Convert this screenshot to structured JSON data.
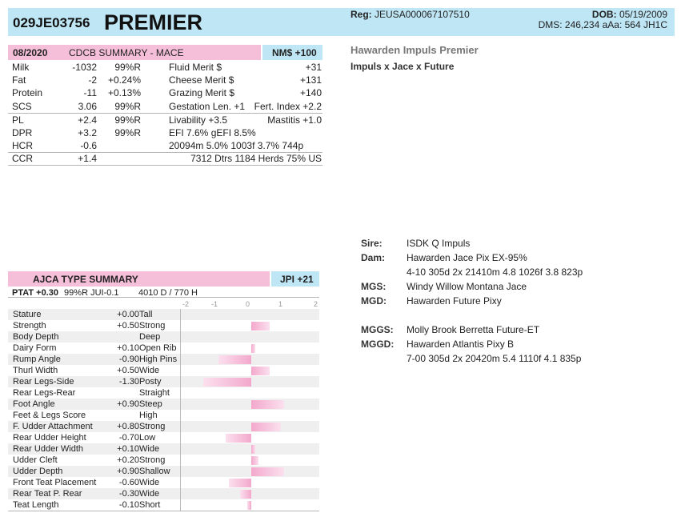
{
  "header": {
    "code": "029JE03756",
    "name": "PREMIER",
    "reg_label": "Reg:",
    "reg_value": "JEUSA000067107510",
    "dob_label": "DOB:",
    "dob_value": "05/19/2009",
    "dms_line": "DMS: 246,234  aAa: 564  JH1C"
  },
  "cdcb": {
    "date": "08/2020",
    "title": "CDCB SUMMARY - MACE",
    "nm": "NM$ +100",
    "rows": [
      {
        "trait": "Milk",
        "value": "-1032",
        "rel": "99%R",
        "label": "Fluid Merit $",
        "right": "+31"
      },
      {
        "trait": "Fat",
        "value": "-2",
        "rel": "+0.24%",
        "label": "Cheese Merit $",
        "right": "+131"
      },
      {
        "trait": "Protein",
        "value": "-11",
        "rel": "+0.13%",
        "label": "Grazing Merit $",
        "right": "+140"
      },
      {
        "trait": "SCS",
        "value": "3.06",
        "rel": "99%R",
        "label": "Gestation Len. +1",
        "right": "Fert. Index +2.2"
      },
      {
        "trait": "PL",
        "value": "+2.4",
        "rel": "99%R",
        "label": "Livability  +3.5",
        "right": "Mastitis  +1.0"
      },
      {
        "trait": "DPR",
        "value": "+3.2",
        "rel": "99%R",
        "label": " EFI  7.6%  gEFI  8.5%",
        "right": ""
      },
      {
        "trait": "HCR",
        "value": "-0.6",
        "rel": "",
        "label": "20094m  5.0%  1003f  3.7%  744p",
        "right": ""
      },
      {
        "trait": "CCR",
        "value": "+1.4",
        "rel": "",
        "label": "",
        "right": "7312 Dtrs  1184 Herds  75% US"
      }
    ]
  },
  "profile": {
    "full_name": "Hawarden Impuls Premier",
    "sire_line": "Impuls x Jace x Future"
  },
  "pedigree": [
    {
      "label": "Sire:",
      "value": "ISDK Q Impuls"
    },
    {
      "label": "Dam:",
      "value": "Hawarden Jace Pix EX-95%"
    },
    {
      "label": "",
      "value": "4-10 305d 2x 21410m 4.8 1026f 3.8 823p"
    },
    {
      "label": "MGS:",
      "value": "Windy Willow Montana Jace"
    },
    {
      "label": "MGD:",
      "value": "Hawarden Future Pixy"
    },
    {
      "label": "MGGS:",
      "value": "Molly Brook Berretta Future-ET"
    },
    {
      "label": "MGGD:",
      "value": "Hawarden Atlantis Pixy B"
    },
    {
      "label": "",
      "value": "7-00 305d 2x 20420m 5.4 1110f 4.1 835p"
    }
  ],
  "type": {
    "title": "AJCA TYPE SUMMARY",
    "jpi": "JPI +21",
    "ptat_label": "PTAT +0.30",
    "ptat_rel": "99%R  JUI-0.1",
    "ptat_extra": "4010 D /  770 H",
    "axis": [
      "-2",
      "-1",
      "0",
      "1",
      "2"
    ],
    "traits": [
      {
        "name": "Stature",
        "value": "+0.00",
        "num": 0.0,
        "desc": "Tall"
      },
      {
        "name": "Strength",
        "value": "+0.50",
        "num": 0.5,
        "desc": "Strong"
      },
      {
        "name": "Body Depth",
        "value": "",
        "num": 0.0,
        "desc": "Deep"
      },
      {
        "name": "Dairy Form",
        "value": "+0.10",
        "num": 0.1,
        "desc": "Open Rib"
      },
      {
        "name": "Rump Angle",
        "value": "-0.90",
        "num": -0.9,
        "desc": "High Pins"
      },
      {
        "name": "Thurl Width",
        "value": "+0.50",
        "num": 0.5,
        "desc": "Wide"
      },
      {
        "name": "Rear Legs-Side",
        "value": "-1.30",
        "num": -1.3,
        "desc": "Posty"
      },
      {
        "name": "Rear Legs-Rear",
        "value": "",
        "num": 0.0,
        "desc": "Straight"
      },
      {
        "name": "Foot Angle",
        "value": "+0.90",
        "num": 0.9,
        "desc": "Steep"
      },
      {
        "name": "Feet & Legs Score",
        "value": "",
        "num": 0.0,
        "desc": "High"
      },
      {
        "name": "F. Udder Attachment",
        "value": "+0.80",
        "num": 0.8,
        "desc": "Strong"
      },
      {
        "name": "Rear Udder Height",
        "value": "-0.70",
        "num": -0.7,
        "desc": "Low"
      },
      {
        "name": "Rear Udder Width",
        "value": "+0.10",
        "num": 0.1,
        "desc": "Wide"
      },
      {
        "name": "Udder Cleft",
        "value": "+0.20",
        "num": 0.2,
        "desc": "Strong"
      },
      {
        "name": "Udder Depth",
        "value": "+0.90",
        "num": 0.9,
        "desc": "Shallow"
      },
      {
        "name": "Front Teat Placement",
        "value": "-0.60",
        "num": -0.6,
        "desc": "Wide"
      },
      {
        "name": "Rear Teat P. Rear",
        "value": "-0.30",
        "num": -0.3,
        "desc": "Wide"
      },
      {
        "name": "Teat Length",
        "value": "-0.10",
        "num": -0.1,
        "desc": "Short"
      }
    ]
  }
}
